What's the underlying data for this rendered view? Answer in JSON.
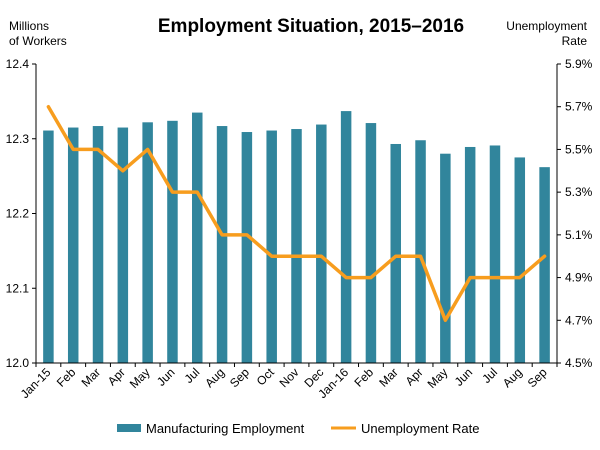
{
  "chart_data": {
    "type": "bar+line",
    "title": "Employment Situation, 2015–2016",
    "ylabel_left": [
      "Millions",
      "of Workers"
    ],
    "ylabel_right": [
      "Unemployment",
      "Rate"
    ],
    "categories": [
      "Jan-15",
      "Feb",
      "Mar",
      "Apr",
      "May",
      "Jun",
      "Jul",
      "Aug",
      "Sep",
      "Oct",
      "Nov",
      "Dec",
      "Jan-16",
      "Feb",
      "Mar",
      "Apr",
      "May",
      "Jun",
      "Jul",
      "Aug",
      "Sep"
    ],
    "left_axis": {
      "min": 12.0,
      "max": 12.4,
      "ticks": [
        "12.0",
        "12.1",
        "12.2",
        "12.3",
        "12.4"
      ]
    },
    "right_axis": {
      "min": 4.5,
      "max": 5.9,
      "ticks": [
        "4.5%",
        "4.7%",
        "4.9%",
        "5.1%",
        "5.3%",
        "5.5%",
        "5.7%",
        "5.9%"
      ]
    },
    "series": [
      {
        "name": "Manufacturing Employment",
        "type": "bar",
        "axis": "left",
        "color": "#31859C",
        "values": [
          12.311,
          12.315,
          12.317,
          12.315,
          12.322,
          12.324,
          12.335,
          12.317,
          12.309,
          12.311,
          12.313,
          12.319,
          12.337,
          12.321,
          12.293,
          12.298,
          12.28,
          12.289,
          12.291,
          12.275,
          12.262
        ]
      },
      {
        "name": "Unemployment Rate",
        "type": "line",
        "axis": "right",
        "color": "#F79D1E",
        "values": [
          5.7,
          5.5,
          5.5,
          5.4,
          5.5,
          5.3,
          5.3,
          5.1,
          5.1,
          5.0,
          5.0,
          5.0,
          4.9,
          4.9,
          5.0,
          5.0,
          4.7,
          4.9,
          4.9,
          4.9,
          5.0
        ]
      }
    ],
    "legend": "bottom",
    "grid": false
  }
}
